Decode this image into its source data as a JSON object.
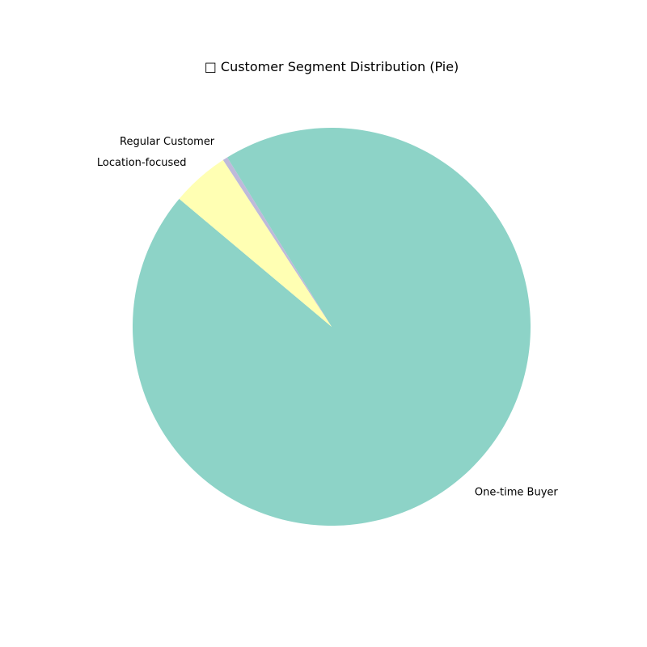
{
  "chart_data": {
    "type": "pie",
    "title": "□ Customer Segment Distribution (Pie)",
    "start_angle_deg": 140,
    "direction": "counterclockwise",
    "slices": [
      {
        "label": "One-time Buyer",
        "value": 94.9,
        "color": "#8dd3c7"
      },
      {
        "label": "Regular Customer",
        "value": 0.4,
        "color": "#bebada"
      },
      {
        "label": "Location-focused",
        "value": 4.7,
        "color": "#ffffb3"
      }
    ]
  }
}
